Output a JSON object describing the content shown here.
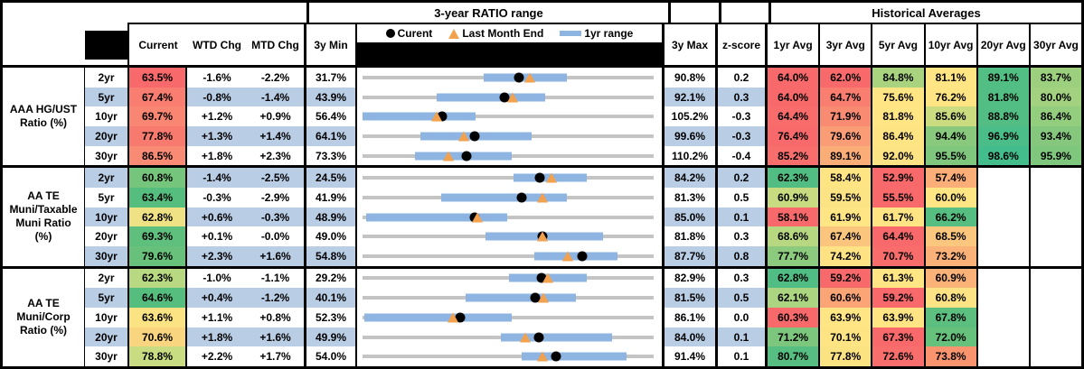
{
  "header": {
    "range_title": "3-year RATIO range",
    "hist_title": "Historical Averages",
    "col_current": "Current",
    "col_wtd": "WTD Chg",
    "col_mtd": "MTD Chg",
    "col_3ymin": "3y Min",
    "col_3ymax": "3y Max",
    "col_zscore": "z-score",
    "avg_cols": [
      "1yr Avg",
      "3yr Avg",
      "5yr Avg",
      "10yr Avg",
      "20yr Avg",
      "30yr Avg"
    ],
    "legend": {
      "current": "Curent",
      "last_month": "Last Month End",
      "range": "1yr range"
    }
  },
  "colors": {
    "stripe_blue": "#B9CDE5",
    "track_gray": "#C4C4C4",
    "range_bar_blue": "#8EB4E2",
    "dot_black": "#000000",
    "triangle_orange": "#F2A24E",
    "scale_red": "#F8696B",
    "scale_yellow": "#FFE583",
    "scale_green": "#63BE7B"
  },
  "chart_data": {
    "type": "table+bullet-range",
    "title": "3-year RATIO range with Historical Averages",
    "x_units": "ratio %",
    "groups": [
      {
        "label_lines": "AAA HG/UST\nRatio (%)",
        "rows": [
          {
            "tenor": "2yr",
            "current": "63.5%",
            "current_bg": "#F8696B",
            "wtd_chg": "-1.6%",
            "mtd_chg": "-2.2%",
            "min_3y": "31.7%",
            "max_3y": "90.8%",
            "z_score": "0.2",
            "range_chart": {
              "min": 31.7,
              "max": 90.8,
              "current": 63.5,
              "last_month_end": 65.7,
              "range_1yr": [
                56.3,
                73.2
              ]
            },
            "averages": [
              {
                "display": "64.0%",
                "bg": "#F8696B"
              },
              {
                "display": "62.0%",
                "bg": "#F8696B"
              },
              {
                "display": "84.8%",
                "bg": "#A9D37F"
              },
              {
                "display": "81.1%",
                "bg": "#FFE583"
              },
              {
                "display": "89.1%",
                "bg": "#53BE83"
              },
              {
                "display": "83.7%",
                "bg": "#9CD07E"
              }
            ]
          },
          {
            "tenor": "5yr",
            "current": "67.4%",
            "current_bg": "#F97D70",
            "wtd_chg": "-0.8%",
            "mtd_chg": "-1.4%",
            "min_3y": "43.9%",
            "max_3y": "92.1%",
            "z_score": "0.3",
            "range_chart": {
              "min": 43.9,
              "max": 92.1,
              "current": 67.4,
              "last_month_end": 68.8,
              "range_1yr": [
                56.1,
                74.2
              ]
            },
            "averages": [
              {
                "display": "64.0%",
                "bg": "#F8696B"
              },
              {
                "display": "64.7%",
                "bg": "#F97E70"
              },
              {
                "display": "75.6%",
                "bg": "#FFE583"
              },
              {
                "display": "76.2%",
                "bg": "#FEE483"
              },
              {
                "display": "81.8%",
                "bg": "#53BE83"
              },
              {
                "display": "80.0%",
                "bg": "#A2D27F"
              }
            ]
          },
          {
            "tenor": "10yr",
            "current": "69.7%",
            "current_bg": "#F98672",
            "wtd_chg": "+1.2%",
            "mtd_chg": "+0.9%",
            "min_3y": "56.4%",
            "max_3y": "105.2%",
            "z_score": "-0.3",
            "range_chart": {
              "min": 56.4,
              "max": 105.2,
              "current": 69.7,
              "last_month_end": 68.8,
              "range_1yr": [
                56.4,
                75.4
              ]
            },
            "averages": [
              {
                "display": "64.4%",
                "bg": "#F86C6C"
              },
              {
                "display": "71.9%",
                "bg": "#F98B72"
              },
              {
                "display": "81.8%",
                "bg": "#FFE584"
              },
              {
                "display": "85.6%",
                "bg": "#CBDB80"
              },
              {
                "display": "88.8%",
                "bg": "#53BE83"
              },
              {
                "display": "86.4%",
                "bg": "#93CD7E"
              }
            ]
          },
          {
            "tenor": "20yr",
            "current": "77.8%",
            "current_bg": "#F87A6E",
            "wtd_chg": "+1.3%",
            "mtd_chg": "+1.4%",
            "min_3y": "64.1%",
            "max_3y": "99.6%",
            "z_score": "-0.3",
            "range_chart": {
              "min": 64.1,
              "max": 99.6,
              "current": 77.8,
              "last_month_end": 76.4,
              "range_1yr": [
                71.2,
                84.7
              ]
            },
            "averages": [
              {
                "display": "76.4%",
                "bg": "#F8696B"
              },
              {
                "display": "79.6%",
                "bg": "#FA9C75"
              },
              {
                "display": "86.4%",
                "bg": "#FEE483"
              },
              {
                "display": "94.4%",
                "bg": "#88C97D"
              },
              {
                "display": "96.9%",
                "bg": "#4ABD88"
              },
              {
                "display": "93.4%",
                "bg": "#85C87D"
              }
            ]
          },
          {
            "tenor": "30yr",
            "current": "86.5%",
            "current_bg": "#F98B74",
            "wtd_chg": "+1.8%",
            "mtd_chg": "+2.3%",
            "min_3y": "73.3%",
            "max_3y": "110.2%",
            "z_score": "-0.4",
            "range_chart": {
              "min": 73.3,
              "max": 110.2,
              "current": 86.5,
              "last_month_end": 84.2,
              "range_1yr": [
                79.9,
                92.2
              ]
            },
            "averages": [
              {
                "display": "85.2%",
                "bg": "#F86E6D"
              },
              {
                "display": "89.1%",
                "bg": "#FBAD78"
              },
              {
                "display": "92.0%",
                "bg": "#FCE383"
              },
              {
                "display": "95.5%",
                "bg": "#7FC77D"
              },
              {
                "display": "98.6%",
                "bg": "#43BD8C"
              },
              {
                "display": "95.9%",
                "bg": "#7EC77D"
              }
            ]
          }
        ]
      },
      {
        "label_lines": "AA TE\nMuni/Taxable\nMuni Ratio\n(%)",
        "rows": [
          {
            "tenor": "2yr",
            "current": "60.8%",
            "current_bg": "#76C57C",
            "wtd_chg": "-1.4%",
            "mtd_chg": "-2.5%",
            "min_3y": "24.5%",
            "max_3y": "84.2%",
            "z_score": "0.2",
            "range_chart": {
              "min": 24.5,
              "max": 84.2,
              "current": 60.8,
              "last_month_end": 63.3,
              "range_1yr": [
                55.4,
                70.5
              ]
            },
            "averages": [
              {
                "display": "62.3%",
                "bg": "#52BD82"
              },
              {
                "display": "58.4%",
                "bg": "#FFE483"
              },
              {
                "display": "52.9%",
                "bg": "#F8696B"
              },
              {
                "display": "57.4%",
                "bg": "#FBAE78"
              },
              null,
              null
            ]
          },
          {
            "tenor": "5yr",
            "current": "63.4%",
            "current_bg": "#55BD7D",
            "wtd_chg": "-0.3%",
            "mtd_chg": "-2.9%",
            "min_3y": "41.9%",
            "max_3y": "81.3%",
            "z_score": "0.5",
            "range_chart": {
              "min": 41.9,
              "max": 81.3,
              "current": 63.4,
              "last_month_end": 66.3,
              "range_1yr": [
                52.5,
                69.6
              ]
            },
            "averages": [
              {
                "display": "60.9%",
                "bg": "#C8DB81"
              },
              {
                "display": "59.5%",
                "bg": "#FCE383"
              },
              {
                "display": "55.5%",
                "bg": "#F8696B"
              },
              {
                "display": "60.0%",
                "bg": "#FFE583"
              },
              null,
              null
            ]
          },
          {
            "tenor": "10yr",
            "current": "62.8%",
            "current_bg": "#EEE284",
            "wtd_chg": "+0.6%",
            "mtd_chg": "-0.3%",
            "min_3y": "48.9%",
            "max_3y": "85.0%",
            "z_score": "0.1",
            "range_chart": {
              "min": 48.9,
              "max": 85.0,
              "current": 62.8,
              "last_month_end": 63.1,
              "range_1yr": [
                49.3,
                66.8
              ]
            },
            "averages": [
              {
                "display": "58.1%",
                "bg": "#F8696B"
              },
              {
                "display": "61.9%",
                "bg": "#FFE583"
              },
              {
                "display": "61.7%",
                "bg": "#FEE483"
              },
              {
                "display": "66.2%",
                "bg": "#57BE81"
              },
              null,
              null
            ]
          },
          {
            "tenor": "20yr",
            "current": "69.3%",
            "current_bg": "#5FBF7C",
            "wtd_chg": "+0.1%",
            "mtd_chg": "-0.0%",
            "min_3y": "49.0%",
            "max_3y": "81.8%",
            "z_score": "0.3",
            "range_chart": {
              "min": 49.0,
              "max": 81.8,
              "current": 69.3,
              "last_month_end": 69.3,
              "range_1yr": [
                62.9,
                76.1
              ]
            },
            "averages": [
              {
                "display": "68.6%",
                "bg": "#B7D780"
              },
              {
                "display": "67.4%",
                "bg": "#FBC57D"
              },
              {
                "display": "64.4%",
                "bg": "#F8696B"
              },
              {
                "display": "68.5%",
                "bg": "#FBC67D"
              },
              null,
              null
            ]
          },
          {
            "tenor": "30yr",
            "current": "79.6%",
            "current_bg": "#68C17B",
            "wtd_chg": "+2.3%",
            "mtd_chg": "+1.6%",
            "min_3y": "54.8%",
            "max_3y": "87.7%",
            "z_score": "0.8",
            "range_chart": {
              "min": 54.8,
              "max": 87.7,
              "current": 79.6,
              "last_month_end": 78.0,
              "range_1yr": [
                74.2,
                83.6
              ]
            },
            "averages": [
              {
                "display": "77.7%",
                "bg": "#8CCB7E"
              },
              {
                "display": "74.2%",
                "bg": "#FEE283"
              },
              {
                "display": "70.7%",
                "bg": "#F86D6C"
              },
              {
                "display": "73.2%",
                "bg": "#FBB279"
              },
              null,
              null
            ]
          }
        ]
      },
      {
        "label_lines": "AA TE\nMuni/Corp\nRatio (%)",
        "rows": [
          {
            "tenor": "2yr",
            "current": "62.3%",
            "current_bg": "#B8D881",
            "wtd_chg": "-1.0%",
            "mtd_chg": "-1.1%",
            "min_3y": "29.2%",
            "max_3y": "82.9%",
            "z_score": "0.3",
            "range_chart": {
              "min": 29.2,
              "max": 82.9,
              "current": 62.3,
              "last_month_end": 63.4,
              "range_1yr": [
                56.3,
                70.6
              ]
            },
            "averages": [
              {
                "display": "62.8%",
                "bg": "#4FBD84"
              },
              {
                "display": "59.2%",
                "bg": "#F8696B"
              },
              {
                "display": "61.3%",
                "bg": "#FFE583"
              },
              {
                "display": "60.9%",
                "bg": "#FBB279"
              },
              null,
              null
            ]
          },
          {
            "tenor": "5yr",
            "current": "64.6%",
            "current_bg": "#55BD7D",
            "wtd_chg": "+0.4%",
            "mtd_chg": "-1.2%",
            "min_3y": "40.1%",
            "max_3y": "81.5%",
            "z_score": "0.5",
            "range_chart": {
              "min": 40.1,
              "max": 81.5,
              "current": 64.6,
              "last_month_end": 65.8,
              "range_1yr": [
                54.7,
                70.5
              ]
            },
            "averages": [
              {
                "display": "62.1%",
                "bg": "#ABD580"
              },
              {
                "display": "60.6%",
                "bg": "#FBA476"
              },
              {
                "display": "59.2%",
                "bg": "#F8696B"
              },
              {
                "display": "60.8%",
                "bg": "#FDE383"
              },
              null,
              null
            ]
          },
          {
            "tenor": "10yr",
            "current": "63.6%",
            "current_bg": "#FBE383",
            "wtd_chg": "+1.1%",
            "mtd_chg": "+0.8%",
            "min_3y": "52.3%",
            "max_3y": "86.1%",
            "z_score": "0.0",
            "range_chart": {
              "min": 52.3,
              "max": 86.1,
              "current": 63.6,
              "last_month_end": 62.8,
              "range_1yr": [
                52.5,
                69.6
              ]
            },
            "averages": [
              {
                "display": "60.3%",
                "bg": "#F8696B"
              },
              {
                "display": "63.9%",
                "bg": "#FFE583"
              },
              {
                "display": "63.9%",
                "bg": "#FEE483"
              },
              {
                "display": "67.8%",
                "bg": "#5CBF80"
              },
              null,
              null
            ]
          },
          {
            "tenor": "20yr",
            "current": "70.6%",
            "current_bg": "#F9D57F",
            "wtd_chg": "+1.8%",
            "mtd_chg": "+1.6%",
            "min_3y": "49.9%",
            "max_3y": "84.0%",
            "z_score": "0.1",
            "range_chart": {
              "min": 49.9,
              "max": 84.0,
              "current": 70.6,
              "last_month_end": 69.0,
              "range_1yr": [
                66.1,
                79.1
              ]
            },
            "averages": [
              {
                "display": "71.2%",
                "bg": "#7CC67D"
              },
              {
                "display": "70.1%",
                "bg": "#FEE483"
              },
              {
                "display": "67.3%",
                "bg": "#F8696B"
              },
              {
                "display": "72.0%",
                "bg": "#66C17C"
              },
              null,
              null
            ]
          },
          {
            "tenor": "30yr",
            "current": "78.8%",
            "current_bg": "#C9DC81",
            "wtd_chg": "+2.2%",
            "mtd_chg": "+1.7%",
            "min_3y": "54.0%",
            "max_3y": "91.4%",
            "z_score": "0.1",
            "range_chart": {
              "min": 54.0,
              "max": 91.4,
              "current": 78.8,
              "last_month_end": 77.1,
              "range_1yr": [
                74.5,
                87.9
              ]
            },
            "averages": [
              {
                "display": "80.7%",
                "bg": "#55BE80"
              },
              {
                "display": "77.8%",
                "bg": "#FCE382"
              },
              {
                "display": "72.6%",
                "bg": "#F86E6C"
              },
              {
                "display": "73.8%",
                "bg": "#F9946F"
              },
              null,
              null
            ]
          }
        ]
      }
    ]
  }
}
